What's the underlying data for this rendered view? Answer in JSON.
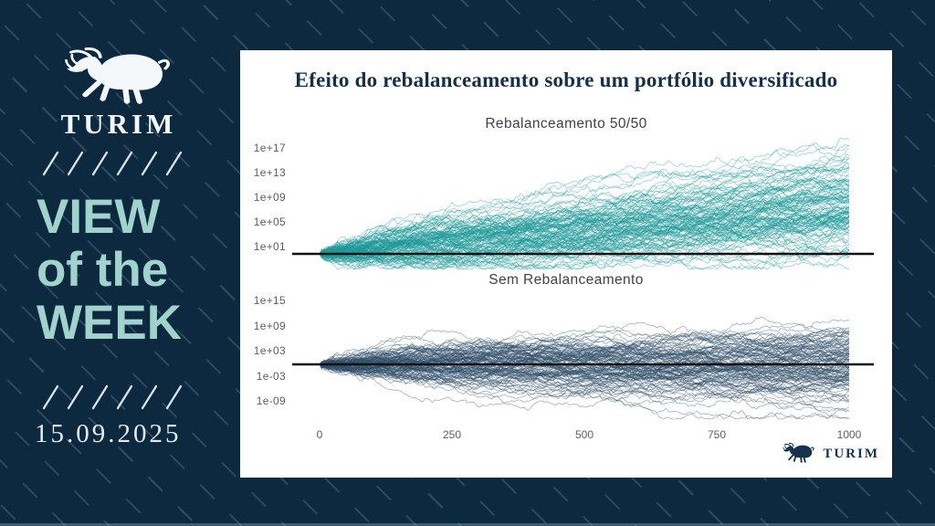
{
  "sidebar": {
    "brand": "TURIM",
    "heading": {
      "line1": "VIEW",
      "line2": "of the",
      "line3": "WEEK"
    },
    "date": "15.09.2025"
  },
  "card": {
    "title": "Efeito do rebalanceamento sobre um portfólio diversificado",
    "footer_brand": "TURIM"
  },
  "colors": {
    "background_navy": "#0d2940",
    "card_background": "#ffffff",
    "accent_seafoam": "#9fd3cc",
    "title_navy": "#14304a",
    "tick_gray": "#5a6066"
  },
  "chart_data": [
    {
      "type": "line",
      "subtype": "monte_carlo_paths",
      "title": "Rebalanceamento 50/50",
      "x_ticks": [
        0,
        250,
        500,
        750,
        1000
      ],
      "x_range": [
        0,
        1000
      ],
      "y_scale": "log",
      "y_ticks": [
        "1e+17",
        "1e+13",
        "1e+09",
        "1e+05",
        "1e+01"
      ],
      "y_range_decades": [
        -3,
        19
      ],
      "start_value_decades": 0,
      "baseline_decades": 0,
      "n_paths": 130,
      "drift_decades_total": 7.5,
      "sigma_decades_total": 4.2,
      "line_color": "#1f9a98",
      "baseline_color": "#111111",
      "grid": false,
      "legend": false,
      "seed": 20250915
    },
    {
      "type": "line",
      "subtype": "monte_carlo_paths",
      "title": "Sem Rebalanceamento",
      "x_ticks": [
        0,
        250,
        500,
        750,
        1000
      ],
      "x_range": [
        0,
        1000
      ],
      "y_scale": "log",
      "y_ticks": [
        "1e+15",
        "1e+09",
        "1e+03",
        "1e-03",
        "1e-09"
      ],
      "y_range_decades": [
        -17,
        16
      ],
      "start_value_decades": 0,
      "baseline_decades": 0,
      "n_paths": 130,
      "drift_decades_total": 0,
      "sigma_decades_total": 5.2,
      "line_color": "#31506b",
      "baseline_color": "#111111",
      "grid": false,
      "legend": false,
      "seed": 987654
    }
  ]
}
